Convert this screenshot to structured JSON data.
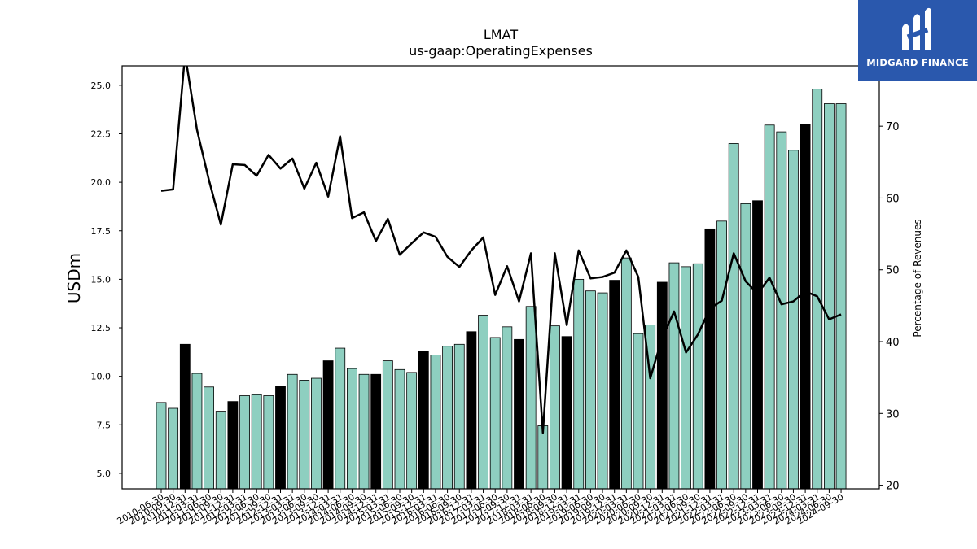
{
  "logo": {
    "text": "MIDGARD FINANCE",
    "icon": "midgard-m-logo-icon",
    "bg_color": "#2a58ad"
  },
  "chart_data": {
    "type": "bar",
    "title": "LMAT",
    "subtitle": "us-gaap:OperatingExpenses",
    "ylabel": "USDm",
    "y2label": "Percentage of Revenues",
    "ylim": [
      4.2,
      26.0
    ],
    "y2lim": [
      19.5,
      78.4
    ],
    "yticks": [
      "5.0",
      "7.5",
      "10.0",
      "12.5",
      "15.0",
      "17.5",
      "20.0",
      "22.5",
      "25.0"
    ],
    "y2ticks": [
      "20",
      "30",
      "40",
      "50",
      "60",
      "70"
    ],
    "bar_color_quarterly": "#8ecfc0",
    "bar_color_fiscal_year_end": "#000000",
    "line_color": "#000000",
    "categories": [
      "2010-06-30",
      "2010-09-30",
      "2010-12-31",
      "2011-03-31",
      "2011-06-30",
      "2011-09-30",
      "2011-12-31",
      "2012-03-31",
      "2012-06-30",
      "2012-09-30",
      "2012-12-31",
      "2013-03-31",
      "2013-06-30",
      "2013-09-30",
      "2013-12-31",
      "2014-03-31",
      "2014-06-30",
      "2014-09-30",
      "2014-12-31",
      "2015-03-31",
      "2015-06-30",
      "2015-09-30",
      "2015-12-31",
      "2016-03-31",
      "2016-06-30",
      "2016-09-30",
      "2016-12-31",
      "2017-03-31",
      "2017-06-30",
      "2017-09-30",
      "2017-12-31",
      "2018-03-31",
      "2018-06-30",
      "2018-09-30",
      "2018-12-31",
      "2019-03-31",
      "2019-06-30",
      "2019-09-30",
      "2019-12-31",
      "2020-03-31",
      "2020-06-30",
      "2020-09-30",
      "2020-12-31",
      "2021-03-31",
      "2021-06-30",
      "2021-09-30",
      "2021-12-31",
      "2022-03-31",
      "2022-06-30",
      "2022-09-30",
      "2022-12-31",
      "2023-03-31",
      "2023-06-30",
      "2023-09-30",
      "2023-12-31",
      "2024-03-31",
      "2024-06-30",
      "2024-09-30"
    ],
    "series": [
      {
        "name": "OperatingExpenses",
        "kind": "bar",
        "axis": "left",
        "values": [
          8.65,
          8.35,
          11.65,
          10.15,
          9.45,
          8.2,
          8.7,
          9.0,
          9.05,
          9.0,
          9.5,
          10.1,
          9.8,
          9.9,
          10.8,
          11.45,
          10.4,
          10.1,
          10.1,
          10.8,
          10.35,
          10.2,
          11.3,
          11.1,
          11.55,
          11.65,
          12.3,
          13.15,
          12.0,
          12.55,
          11.9,
          13.6,
          7.45,
          12.6,
          12.05,
          15.0,
          14.4,
          14.3,
          14.95,
          16.1,
          12.2,
          12.65,
          14.85,
          15.85,
          15.65,
          15.8,
          17.6,
          18.0,
          22.0,
          18.9,
          19.05,
          22.95,
          22.6,
          21.65,
          23.0,
          24.8,
          24.05,
          24.05
        ]
      },
      {
        "name": "Percentage of Revenues",
        "kind": "line",
        "axis": "right",
        "values": [
          61.0,
          61.2,
          80.0,
          69.5,
          62.5,
          56.3,
          64.7,
          64.6,
          63.1,
          66.0,
          64.1,
          65.5,
          61.3,
          64.9,
          60.2,
          68.6,
          57.2,
          58.0,
          54.0,
          57.1,
          52.1,
          53.7,
          55.2,
          54.6,
          51.8,
          50.4,
          52.7,
          54.5,
          46.5,
          50.5,
          45.6,
          52.3,
          27.3,
          52.3,
          42.3,
          52.7,
          48.8,
          49.0,
          49.6,
          52.7,
          49.0,
          34.9,
          40.5,
          44.2,
          38.5,
          41.0,
          44.6,
          45.7,
          52.3,
          48.4,
          46.7,
          48.9,
          45.2,
          45.6,
          47.0,
          46.3,
          43.1,
          43.8
        ]
      }
    ],
    "fiscal_year_end_indices": [
      2,
      6,
      10,
      14,
      18,
      22,
      26,
      30,
      34,
      38,
      42,
      46,
      50,
      54
    ]
  }
}
